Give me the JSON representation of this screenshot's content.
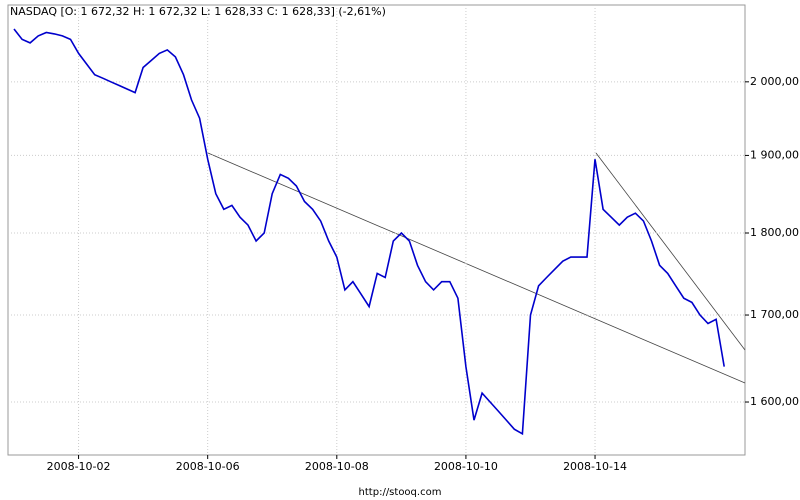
{
  "chart_data": {
    "type": "line",
    "title": "NASDAQ [O: 1 672,32  H: 1 672,32  L: 1 628,33  C: 1 628,33] (-2,61%)",
    "source": "http://stooq.com",
    "categories": [
      null,
      null,
      null,
      null,
      null,
      null,
      null,
      null,
      "2008-10-02",
      null,
      null,
      null,
      null,
      null,
      null,
      null,
      null,
      null,
      null,
      null,
      null,
      null,
      null,
      null,
      "2008-10-06",
      null,
      null,
      null,
      null,
      null,
      null,
      null,
      null,
      null,
      null,
      null,
      null,
      null,
      null,
      null,
      "2008-10-08",
      null,
      null,
      null,
      null,
      null,
      null,
      null,
      null,
      null,
      null,
      null,
      null,
      null,
      null,
      null,
      "2008-10-10",
      null,
      null,
      null,
      null,
      null,
      null,
      null,
      null,
      null,
      null,
      null,
      null,
      null,
      null,
      null,
      "2008-10-14",
      null,
      null,
      null,
      null,
      null,
      null,
      null,
      null,
      null,
      null,
      null,
      null,
      null,
      null,
      null,
      null
    ],
    "series": [
      {
        "name": "NASDAQ",
        "color": "#0000cc",
        "values": [
          2075,
          2060,
          2055,
          2065,
          2070,
          2068,
          2065,
          2060,
          2040,
          2025,
          2010,
          2005,
          2000,
          1995,
          1990,
          1985,
          2020,
          2030,
          2040,
          2045,
          2035,
          2010,
          1975,
          1950,
          1895,
          1850,
          1830,
          1835,
          1820,
          1810,
          1790,
          1800,
          1850,
          1875,
          1870,
          1860,
          1840,
          1830,
          1815,
          1790,
          1770,
          1730,
          1740,
          1725,
          1710,
          1750,
          1745,
          1790,
          1800,
          1790,
          1760,
          1740,
          1730,
          1740,
          1740,
          1720,
          1640,
          1580,
          1610,
          1600,
          1590,
          1580,
          1570,
          1565,
          1700,
          1735,
          1745,
          1755,
          1765,
          1770,
          1770,
          1770,
          1895,
          1830,
          1820,
          1810,
          1820,
          1825,
          1815,
          1790,
          1760,
          1750,
          1735,
          1720,
          1715,
          1700,
          1690,
          1695,
          1640
        ]
      }
    ],
    "ylim": [
      1542,
      2110
    ],
    "log_scale": true,
    "yticks": [
      {
        "value": 1600,
        "label": "1 600,00"
      },
      {
        "value": 1700,
        "label": "1 700,00"
      },
      {
        "value": 1800,
        "label": "1 800,00"
      },
      {
        "value": 1900,
        "label": "1 900,00"
      },
      {
        "value": 2000,
        "label": "2 000,00"
      }
    ],
    "grid": true
  }
}
